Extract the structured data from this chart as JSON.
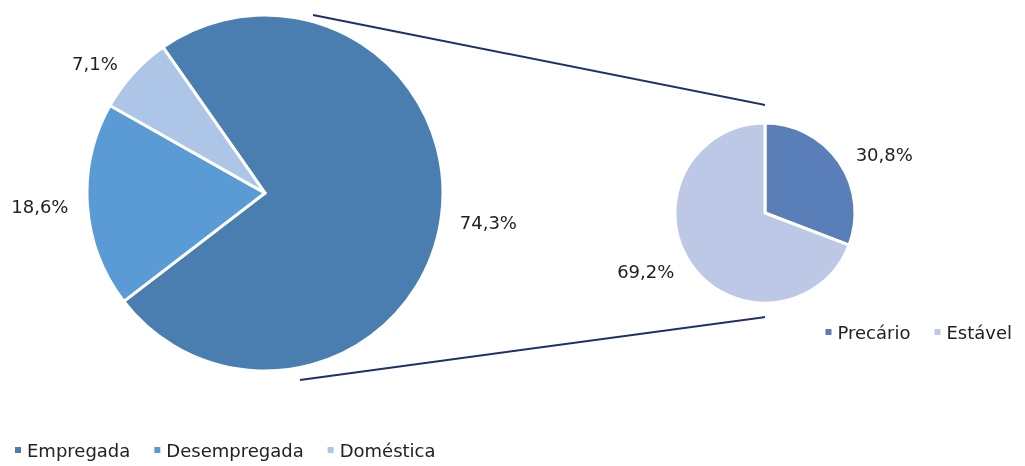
{
  "chart_data": [
    {
      "type": "pie",
      "categories": [
        "Empregada",
        "Desempregada",
        "Doméstica"
      ],
      "values": [
        74.3,
        18.6,
        7.1
      ],
      "colors": [
        "#4a7eb0",
        "#5b9bd5",
        "#adc5e6"
      ],
      "value_labels": [
        "74,3%",
        "18,6%",
        "7,1%"
      ],
      "legend": "bottom left"
    },
    {
      "type": "pie",
      "categories": [
        "Precário",
        "Estável"
      ],
      "values": [
        30.8,
        69.2
      ],
      "colors": [
        "#5a7fb8",
        "#bcc8e6"
      ],
      "value_labels": [
        "30,8%",
        "69,2%"
      ],
      "legend": "bottom right"
    }
  ]
}
